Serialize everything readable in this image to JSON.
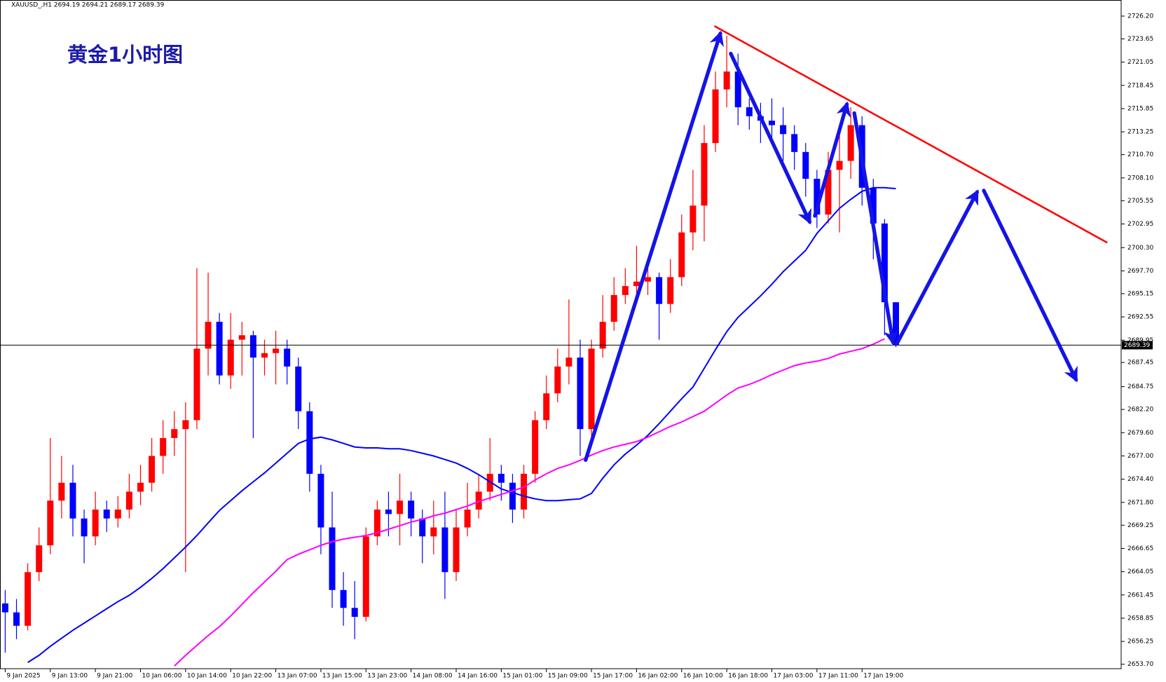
{
  "chart_data": {
    "type": "candlestick",
    "title": "黄金1小时图",
    "subtitle": "XAUUSD_,H1 2694.19 2694.21 2689.17 2689.39",
    "categories": [
      "9 Jan 2025",
      null,
      null,
      null,
      "9 Jan 13:00",
      null,
      null,
      null,
      "9 Jan 21:00",
      null,
      null,
      null,
      "10 Jan 06:00",
      null,
      null,
      null,
      "10 Jan 14:00",
      null,
      null,
      null,
      "10 Jan 22:00",
      null,
      null,
      null,
      "13 Jan 07:00",
      null,
      null,
      null,
      "13 Jan 15:00",
      null,
      null,
      null,
      "13 Jan 23:00",
      null,
      null,
      null,
      "14 Jan 08:00",
      null,
      null,
      null,
      "14 Jan 16:00",
      null,
      null,
      null,
      "15 Jan 01:00",
      null,
      null,
      null,
      "15 Jan 09:00",
      null,
      null,
      null,
      "15 Jan 17:00",
      null,
      null,
      null,
      "16 Jan 02:00",
      null,
      null,
      null,
      "16 Jan 10:00",
      null,
      null,
      null,
      "16 Jan 18:00",
      null,
      null,
      null,
      "17 Jan 03:00",
      null,
      null,
      null,
      "17 Jan 11:00",
      null,
      null,
      null,
      "17 Jan 19:00",
      null,
      null,
      null
    ],
    "open": [
      2660.5,
      2659.5,
      2658,
      2664,
      2667,
      2672,
      2674,
      2670,
      2668,
      2671,
      2670,
      2671,
      2673,
      2674,
      2677,
      2679,
      2680,
      2681,
      2689,
      2692,
      2686,
      2690,
      2690.5,
      2688,
      2688.5,
      2689,
      2687,
      2682,
      2675,
      2669,
      2662,
      2660,
      2659,
      2668,
      2671,
      2670.5,
      2672,
      2670,
      2668,
      2669,
      2664,
      2669,
      2671,
      2673,
      2675,
      2674,
      2671,
      2675,
      2681,
      2684,
      2687,
      2688,
      2680,
      2689,
      2692,
      2695,
      2696,
      2696.5,
      2697,
      2694,
      2697,
      2702,
      2705,
      2712,
      2718,
      2720,
      2716,
      2715,
      2714.5,
      2714,
      2713,
      2711,
      2708,
      2704,
      2709,
      2710,
      2714,
      2707,
      2703,
      2694.19
    ],
    "high": [
      2662,
      2661,
      2665,
      2669,
      2679,
      2677,
      2676,
      2671,
      2673,
      2672,
      2672.5,
      2675,
      2676,
      2679,
      2681,
      2682,
      2683,
      2698,
      2697.5,
      2693,
      2693,
      2692,
      2691,
      2690,
      2691,
      2690,
      2688,
      2683,
      2676,
      2673,
      2664,
      2663,
      2669,
      2672,
      2673,
      2675,
      2673,
      2671,
      2672,
      2673,
      2671,
      2674,
      2675,
      2679,
      2676,
      2675,
      2676,
      2682,
      2686,
      2689,
      2694.5,
      2690,
      2690,
      2695,
      2697,
      2698,
      2700.5,
      2699,
      2697.5,
      2699,
      2704,
      2709,
      2714,
      2720,
      2724,
      2722,
      2717,
      2716.5,
      2717,
      2716,
      2714,
      2712,
      2709,
      2711,
      2713,
      2716,
      2715,
      2708,
      2703.5,
      2694.21
    ],
    "low": [
      2655,
      2656.5,
      2657.5,
      2663,
      2666,
      2670,
      2668,
      2665,
      2667,
      2668.5,
      2669,
      2670,
      2671.5,
      2673,
      2675,
      2677,
      2664,
      2680,
      2686,
      2685,
      2684.5,
      2686,
      2679,
      2686,
      2685,
      2685,
      2680,
      2673,
      2666,
      2660,
      2658,
      2656.5,
      2658.5,
      2667,
      2668,
      2667,
      2668,
      2665,
      2666,
      2661,
      2663,
      2668,
      2670,
      2672,
      2672,
      2669.5,
      2670,
      2674,
      2680,
      2683,
      2685,
      2677,
      2678,
      2688,
      2691,
      2694,
      2694.5,
      2695,
      2690,
      2693,
      2696,
      2700,
      2701,
      2711,
      2716,
      2714,
      2713.5,
      2712,
      2712.5,
      2710,
      2709,
      2706,
      2702.5,
      2703,
      2702,
      2708,
      2705,
      2699,
      2690.5,
      2689.17
    ],
    "close": [
      2659.5,
      2658,
      2664,
      2667,
      2672,
      2674,
      2670,
      2668,
      2671,
      2670,
      2671,
      2673,
      2674,
      2677,
      2679,
      2680,
      2681,
      2689,
      2692,
      2686,
      2690,
      2690.5,
      2688,
      2688.5,
      2689,
      2687,
      2682,
      2675,
      2669,
      2662,
      2660,
      2659,
      2668,
      2671,
      2670.5,
      2672,
      2670,
      2668,
      2669,
      2664,
      2669,
      2671,
      2673,
      2675,
      2674,
      2671,
      2675,
      2681,
      2684,
      2687,
      2688,
      2680,
      2689,
      2692,
      2695,
      2696,
      2696.5,
      2697,
      2694,
      2697,
      2702,
      2705,
      2712,
      2718,
      2720,
      2716,
      2715,
      2714.5,
      2714,
      2713,
      2711,
      2708,
      2704,
      2709,
      2710,
      2714,
      2707,
      2703,
      2694.19,
      2689.39
    ],
    "up_color": "#ff0000",
    "down_color": "#0000ff",
    "lines": [
      {
        "color": "#0000ff",
        "values": [
          null,
          null,
          2653.9,
          2654.7,
          2655.7,
          2656.6,
          2657.5,
          2658.3,
          2659.1,
          2659.9,
          2660.7,
          2661.4,
          2662.3,
          2663.3,
          2664.4,
          2665.6,
          2666.8,
          2668.1,
          2669.5,
          2670.9,
          2672,
          2673.1,
          2674.1,
          2675.1,
          2676.2,
          2677.3,
          2678.4,
          2678.9,
          2679.1,
          2678.8,
          2678.4,
          2678,
          2677.9,
          2677.9,
          2677.8,
          2677.8,
          2677.6,
          2677.3,
          2677,
          2676.6,
          2676.2,
          2675.6,
          2674.9,
          2674.1,
          2673.3,
          2672.9,
          2672.5,
          2672.2,
          2672,
          2672,
          2672.1,
          2672.2,
          2672.8,
          2674.5,
          2676,
          2677.2,
          2678.2,
          2679.3,
          2680.6,
          2682,
          2683.4,
          2684.7,
          2686.8,
          2688.9,
          2690.9,
          2692.5,
          2693.7,
          2694.9,
          2696.2,
          2697.6,
          2698.8,
          2700,
          2701.9,
          2703.3,
          2704.7,
          2705.7,
          2706.6,
          2707,
          2707,
          2706.9
        ]
      },
      {
        "color": "#ff00ff",
        "values": [
          null,
          null,
          null,
          null,
          null,
          null,
          null,
          null,
          null,
          null,
          null,
          null,
          null,
          null,
          null,
          2653.5,
          2654.7,
          2655.8,
          2656.9,
          2657.9,
          2659.1,
          2660.4,
          2661.7,
          2662.9,
          2664.1,
          2665.4,
          2666,
          2666.5,
          2667,
          2667.4,
          2667.7,
          2667.9,
          2668.1,
          2668.4,
          2668.8,
          2669.2,
          2669.6,
          2669.9,
          2670.3,
          2670.6,
          2671,
          2671.4,
          2671.9,
          2672.3,
          2672.7,
          2673.1,
          2673.5,
          2674.3,
          2675,
          2675.6,
          2676,
          2676.5,
          2677.1,
          2677.6,
          2678,
          2678.3,
          2678.6,
          2679.1,
          2679.7,
          2680.3,
          2680.8,
          2681.4,
          2682,
          2682.9,
          2683.8,
          2684.6,
          2685,
          2685.5,
          2686.1,
          2686.6,
          2687.1,
          2687.4,
          2687.6,
          2687.9,
          2688.4,
          2688.7,
          2689,
          2689.5,
          2690.1,
          null
        ]
      }
    ],
    "last_price": 2689.39,
    "ylim": [
      2653.2,
      2728.0
    ],
    "yticks": [
      {
        "value": 2726.2,
        "label": "2726.20"
      },
      {
        "value": 2723.65,
        "label": "2723.65"
      },
      {
        "value": 2721.05,
        "label": "2721.05"
      },
      {
        "value": 2718.45,
        "label": "2718.45"
      },
      {
        "value": 2715.85,
        "label": "2715.85"
      },
      {
        "value": 2713.25,
        "label": "2713.25"
      },
      {
        "value": 2710.7,
        "label": "2710.70"
      },
      {
        "value": 2708.1,
        "label": "2708.10"
      },
      {
        "value": 2705.55,
        "label": "2705.55"
      },
      {
        "value": 2702.95,
        "label": "2702.95"
      },
      {
        "value": 2700.3,
        "label": "2700.30"
      },
      {
        "value": 2697.7,
        "label": "2697.70"
      },
      {
        "value": 2695.15,
        "label": "2695.15"
      },
      {
        "value": 2692.55,
        "label": "2692.55"
      },
      {
        "value": 2689.95,
        "label": "2689.95"
      },
      {
        "value": 2687.45,
        "label": "2687.45"
      },
      {
        "value": 2684.75,
        "label": "2684.75"
      },
      {
        "value": 2682.2,
        "label": "2682.20"
      },
      {
        "value": 2679.6,
        "label": "2679.60"
      },
      {
        "value": 2677,
        "label": "2677.00"
      },
      {
        "value": 2674.4,
        "label": "2674.40"
      },
      {
        "value": 2671.8,
        "label": "2671.80"
      },
      {
        "value": 2669.25,
        "label": "2669.25"
      },
      {
        "value": 2666.65,
        "label": "2666.65"
      },
      {
        "value": 2664.05,
        "label": "2664.05"
      },
      {
        "value": 2661.45,
        "label": "2661.45"
      },
      {
        "value": 2658.85,
        "label": "2658.85"
      },
      {
        "value": 2656.25,
        "label": "2656.25"
      },
      {
        "value": 2653.7,
        "label": "2653.70"
      }
    ]
  }
}
